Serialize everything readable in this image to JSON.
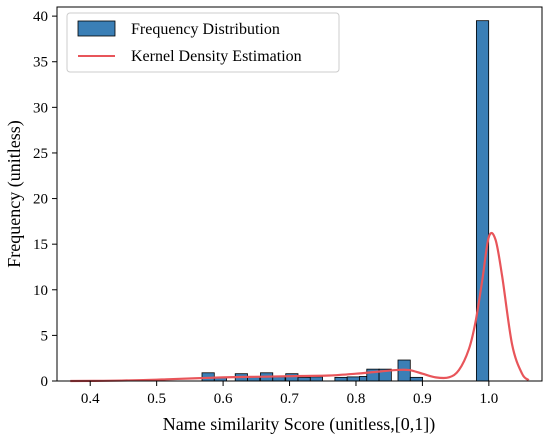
{
  "chart_data": {
    "type": "bar",
    "xlabel": "Name similarity Score (unitless,[0,1])",
    "ylabel": "Frequency (unitless)",
    "xlim": [
      0.35,
      1.08
    ],
    "ylim": [
      0,
      41
    ],
    "x_ticks": [
      0.4,
      0.5,
      0.6,
      0.7,
      0.8,
      0.9,
      1.0
    ],
    "x_tick_labels": [
      "0.4",
      "0.5",
      "0.6",
      "0.7",
      "0.8",
      "0.9",
      "1.0"
    ],
    "y_ticks": [
      0,
      5,
      10,
      15,
      20,
      25,
      30,
      35,
      40
    ],
    "y_tick_labels": [
      "0",
      "5",
      "10",
      "15",
      "20",
      "25",
      "30",
      "35",
      "40"
    ],
    "legend_position": "top-left",
    "grid": false,
    "series": [
      {
        "name": "Frequency Distribution",
        "kind": "histogram",
        "color": "#3b7fb6",
        "bin_width": 0.0185,
        "bins": [
          {
            "x": 0.5775,
            "value": 0.9
          },
          {
            "x": 0.596,
            "value": 0.35
          },
          {
            "x": 0.6275,
            "value": 0.8
          },
          {
            "x": 0.646,
            "value": 0.5
          },
          {
            "x": 0.6655,
            "value": 0.9
          },
          {
            "x": 0.684,
            "value": 0.45
          },
          {
            "x": 0.7035,
            "value": 0.8
          },
          {
            "x": 0.722,
            "value": 0.4
          },
          {
            "x": 0.7405,
            "value": 0.45
          },
          {
            "x": 0.7775,
            "value": 0.4
          },
          {
            "x": 0.796,
            "value": 0.45
          },
          {
            "x": 0.8145,
            "value": 0.5
          },
          {
            "x": 0.8255,
            "value": 1.3
          },
          {
            "x": 0.844,
            "value": 1.3
          },
          {
            "x": 0.8725,
            "value": 2.3
          },
          {
            "x": 0.891,
            "value": 0.4
          },
          {
            "x": 0.9905,
            "value": 39.5
          }
        ]
      },
      {
        "name": "Kernel Density Estimation",
        "kind": "line",
        "color": "#e8555a",
        "x": [
          0.37,
          0.42,
          0.48,
          0.52,
          0.56,
          0.6,
          0.64,
          0.68,
          0.72,
          0.76,
          0.8,
          0.83,
          0.86,
          0.88,
          0.9,
          0.92,
          0.94,
          0.955,
          0.97,
          0.98,
          0.99,
          1.0,
          1.01,
          1.02,
          1.035,
          1.05,
          1.06
        ],
        "y": [
          0.0,
          0.02,
          0.1,
          0.2,
          0.3,
          0.4,
          0.45,
          0.5,
          0.55,
          0.6,
          0.8,
          1.0,
          1.2,
          1.2,
          0.8,
          0.4,
          0.4,
          1.2,
          3.5,
          6.5,
          11.0,
          15.8,
          15.5,
          11.5,
          4.0,
          0.8,
          0.1
        ]
      }
    ]
  }
}
